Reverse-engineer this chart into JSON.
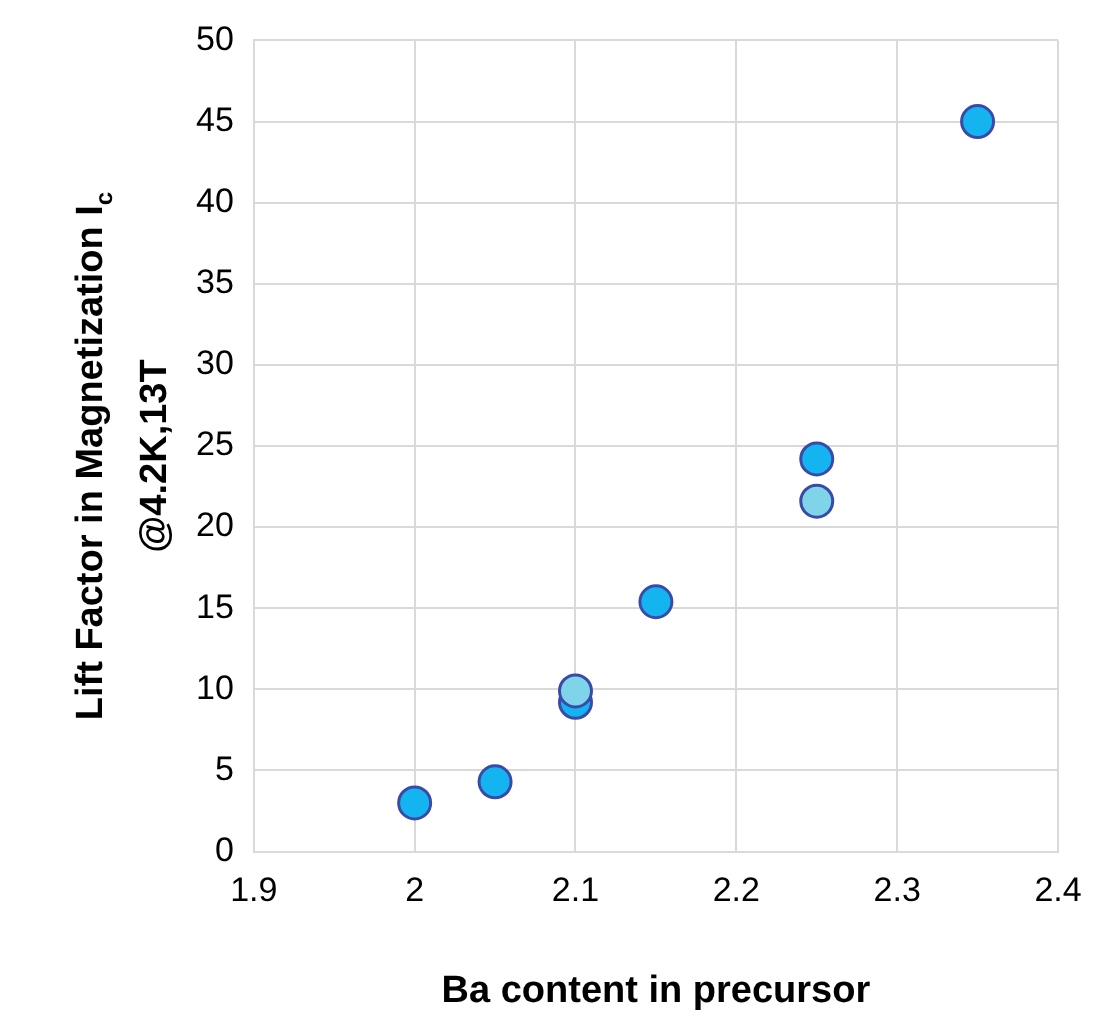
{
  "chart_data": {
    "type": "scatter",
    "xlabel": "Ba content in precursor",
    "ylabel": "Lift Factor in Magnetization I$_{c}$\n@4.2K,13T",
    "series": [
      {
        "color": "#14b4f0",
        "x": [
          2.0,
          2.05,
          2.1,
          2.15,
          2.25,
          2.35
        ],
        "values": [
          3.0,
          4.3,
          9.2,
          15.4,
          24.2,
          45.0
        ]
      },
      {
        "color": "#80d4ea",
        "x": [
          2.1,
          2.25
        ],
        "values": [
          9.9,
          21.6
        ]
      }
    ],
    "xlim": [
      1.9,
      2.4
    ],
    "xticks": [
      1.9,
      2,
      2.1,
      2.2,
      2.3,
      2.4
    ],
    "ylim": [
      0,
      50
    ],
    "yticks": [
      0,
      5,
      10,
      15,
      20,
      25,
      30,
      35,
      40,
      45,
      50
    ],
    "grid": true,
    "marker": "circle",
    "legend": false
  }
}
